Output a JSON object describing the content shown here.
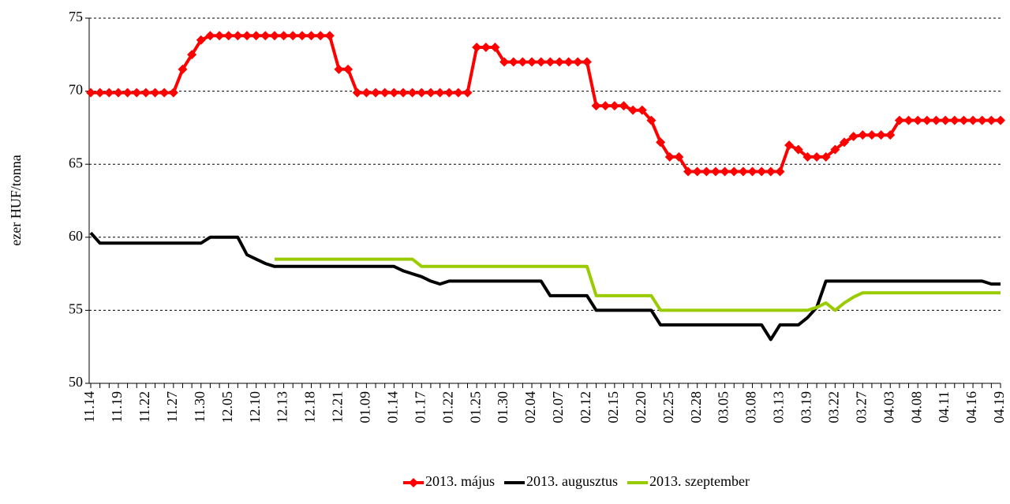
{
  "chart_data": {
    "type": "line",
    "y_label": "ezer HUF/tonna",
    "categories": [
      "11.14",
      null,
      null,
      "11.19",
      null,
      null,
      "11.22",
      null,
      null,
      "11.27",
      null,
      null,
      "11.30",
      null,
      null,
      "12.05",
      null,
      null,
      "12.10",
      null,
      null,
      "12.13",
      null,
      null,
      "12.18",
      null,
      null,
      "12.21",
      null,
      null,
      "01.09",
      null,
      null,
      "01.14",
      null,
      null,
      "01.17",
      null,
      null,
      "01.22",
      null,
      null,
      "01.25",
      null,
      null,
      "01.30",
      null,
      null,
      "02.04",
      null,
      null,
      "02.07",
      null,
      null,
      "02.12",
      null,
      null,
      "02.15",
      null,
      null,
      "02.20",
      null,
      null,
      "02.25",
      null,
      null,
      "02.28",
      null,
      null,
      "03.05",
      null,
      null,
      "03.08",
      null,
      null,
      "03.13",
      null,
      null,
      "03.19",
      null,
      null,
      "03.22",
      null,
      null,
      "03.27",
      null,
      null,
      "04.03",
      null,
      null,
      "04.08",
      null,
      null,
      "04.11",
      null,
      null,
      "04.16",
      null,
      null,
      "04.19"
    ],
    "series": [
      {
        "name": "2013. május",
        "color": "#ff0000",
        "marker": "diamond",
        "values": [
          69.9,
          69.9,
          69.9,
          69.9,
          69.9,
          69.9,
          69.9,
          69.9,
          69.9,
          69.9,
          71.5,
          72.5,
          73.5,
          73.8,
          73.8,
          73.8,
          73.8,
          73.8,
          73.8,
          73.8,
          73.8,
          73.8,
          73.8,
          73.8,
          73.8,
          73.8,
          73.8,
          71.5,
          71.5,
          69.9,
          69.9,
          69.9,
          69.9,
          69.9,
          69.9,
          69.9,
          69.9,
          69.9,
          69.9,
          69.9,
          69.9,
          69.9,
          73,
          73,
          73,
          72,
          72,
          72,
          72,
          72,
          72,
          72,
          72,
          72,
          72,
          69,
          69,
          69,
          69,
          68.7,
          68.7,
          68,
          66.5,
          65.5,
          65.5,
          64.5,
          64.5,
          64.5,
          64.5,
          64.5,
          64.5,
          64.5,
          64.5,
          64.5,
          64.5,
          64.5,
          66.3,
          66,
          65.5,
          65.5,
          65.5,
          66,
          66.5,
          66.9,
          67,
          67,
          67,
          67,
          68,
          68,
          68,
          68,
          68,
          68,
          68,
          68,
          68,
          68,
          68,
          68
        ]
      },
      {
        "name": "2013. augusztus",
        "color": "#000000",
        "values": [
          60.3,
          59.6,
          59.6,
          59.6,
          59.6,
          59.6,
          59.6,
          59.6,
          59.6,
          59.6,
          59.6,
          59.6,
          59.6,
          60,
          60,
          60,
          60,
          58.8,
          58.5,
          58.2,
          58,
          58,
          58,
          58,
          58,
          58,
          58,
          58,
          58,
          58,
          58,
          58,
          58,
          58,
          57.7,
          57.5,
          57.3,
          57,
          56.8,
          57,
          57,
          57,
          57,
          57,
          57,
          57,
          57,
          57,
          57,
          57,
          56,
          56,
          56,
          56,
          56,
          55,
          55,
          55,
          55,
          55,
          55,
          55,
          54,
          54,
          54,
          54,
          54,
          54,
          54,
          54,
          54,
          54,
          54,
          54,
          53,
          54,
          54,
          54,
          54.5,
          55.2,
          57,
          57,
          57,
          57,
          57,
          57,
          57,
          57,
          57,
          57,
          57,
          57,
          57,
          57,
          57,
          57,
          57,
          57,
          56.8,
          56.8
        ]
      },
      {
        "name": "2013. szeptember",
        "color": "#99cc00",
        "values": [
          null,
          null,
          null,
          null,
          null,
          null,
          null,
          null,
          null,
          null,
          null,
          null,
          null,
          null,
          null,
          null,
          null,
          null,
          null,
          null,
          58.5,
          58.5,
          58.5,
          58.5,
          58.5,
          58.5,
          58.5,
          58.5,
          58.5,
          58.5,
          58.5,
          58.5,
          58.5,
          58.5,
          58.5,
          58.5,
          58,
          58,
          58,
          58,
          58,
          58,
          58,
          58,
          58,
          58,
          58,
          58,
          58,
          58,
          58,
          58,
          58,
          58,
          58,
          56,
          56,
          56,
          56,
          56,
          56,
          56,
          55,
          55,
          55,
          55,
          55,
          55,
          55,
          55,
          55,
          55,
          55,
          55,
          55,
          55,
          55,
          55,
          55,
          55.2,
          55.5,
          55,
          55.5,
          55.9,
          56.2,
          56.2,
          56.2,
          56.2,
          56.2,
          56.2,
          56.2,
          56.2,
          56.2,
          56.2,
          56.2,
          56.2,
          56.2,
          56.2,
          56.2,
          56.2
        ]
      }
    ],
    "ylim": [
      50,
      75
    ],
    "yticks": [
      50,
      55,
      60,
      65,
      70,
      75
    ],
    "grid": true,
    "legend": "bottom"
  }
}
